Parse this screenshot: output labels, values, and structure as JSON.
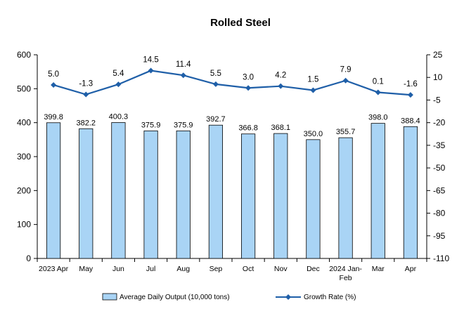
{
  "chart_data": {
    "type": "bar+line",
    "title": "Rolled Steel",
    "categories": [
      "2023 Apr",
      "May",
      "Jun",
      "Jul",
      "Aug",
      "Sep",
      "Oct",
      "Nov",
      "Dec",
      "2024 Jan-Feb",
      "Mar",
      "Apr"
    ],
    "category_lines": [
      [
        "2023 Apr"
      ],
      [
        "May"
      ],
      [
        "Jun"
      ],
      [
        "Jul"
      ],
      [
        "Aug"
      ],
      [
        "Sep"
      ],
      [
        "Oct"
      ],
      [
        "Nov"
      ],
      [
        "Dec"
      ],
      [
        "2024 Jan-",
        "Feb"
      ],
      [
        "Mar"
      ],
      [
        "Apr"
      ]
    ],
    "series": [
      {
        "name": "Average Daily Output (10,000 tons)",
        "type": "bar",
        "axis": "left",
        "color": "#a9d4f5",
        "values": [
          399.8,
          382.2,
          400.3,
          375.9,
          375.9,
          392.7,
          366.8,
          368.1,
          350.0,
          355.7,
          398.0,
          388.4
        ],
        "labels": [
          "399.8",
          "382.2",
          "400.3",
          "375.9",
          "375.9",
          "392.7",
          "366.8",
          "368.1",
          "350.0",
          "355.7",
          "398.0",
          "388.4"
        ]
      },
      {
        "name": "Growth Rate (%)",
        "type": "line",
        "axis": "right",
        "color": "#1f5fa8",
        "values": [
          5.0,
          -1.3,
          5.4,
          14.5,
          11.4,
          5.5,
          3.0,
          4.2,
          1.5,
          7.9,
          0.1,
          -1.6
        ],
        "labels": [
          "5.0",
          "-1.3",
          "5.4",
          "14.5",
          "11.4",
          "5.5",
          "3.0",
          "4.2",
          "1.5",
          "7.9",
          "0.1",
          "-1.6"
        ]
      }
    ],
    "left_axis": {
      "min": 0,
      "max": 600,
      "ticks": [
        "0",
        "100",
        "200",
        "300",
        "400",
        "500",
        "600"
      ]
    },
    "right_axis": {
      "min": -110,
      "max": 25,
      "ticks": [
        "-110",
        "-95",
        "-80",
        "-65",
        "-50",
        "-35",
        "-20",
        "-5",
        "10",
        "25"
      ]
    },
    "grid": false,
    "legend_position": "bottom"
  }
}
